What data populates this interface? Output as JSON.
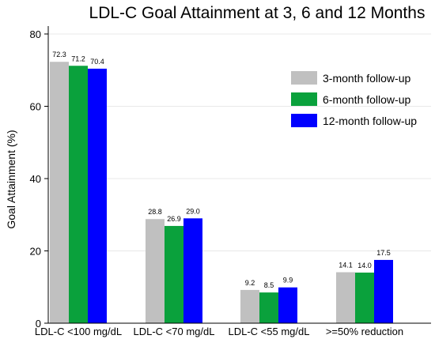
{
  "chart_data": {
    "type": "bar",
    "title": "LDL-C Goal Attainment at 3, 6 and 12 Months",
    "ylabel": "Goal Attainment (%)",
    "xlabel": "",
    "ylim": [
      0,
      85
    ],
    "yticks": [
      0,
      20,
      40,
      60,
      80
    ],
    "ytick_labels": [
      "0",
      "20",
      "40",
      "60",
      "80"
    ],
    "grid": true,
    "legend_position": "top-right",
    "categories": [
      "LDL-C <100 mg/dL",
      "LDL-C <70 mg/dL",
      "LDL-C <55 mg/dL",
      ">=50% reduction"
    ],
    "series": [
      {
        "name": "3-month follow-up",
        "color": "#c0c0c0",
        "values": [
          72.3,
          28.8,
          9.2,
          14.1
        ],
        "labels": [
          "72.3",
          "28.8",
          "9.2",
          "14.1"
        ]
      },
      {
        "name": "6-month follow-up",
        "color": "#0aa13c",
        "values": [
          71.2,
          26.9,
          8.5,
          14.0
        ],
        "labels": [
          "71.2",
          "26.9",
          "8.5",
          "14.0"
        ]
      },
      {
        "name": "12-month follow-up",
        "color": "#0000ff",
        "values": [
          70.4,
          29.0,
          9.9,
          17.5
        ],
        "labels": [
          "70.4",
          "29.0",
          "9.9",
          "17.5"
        ]
      }
    ]
  }
}
